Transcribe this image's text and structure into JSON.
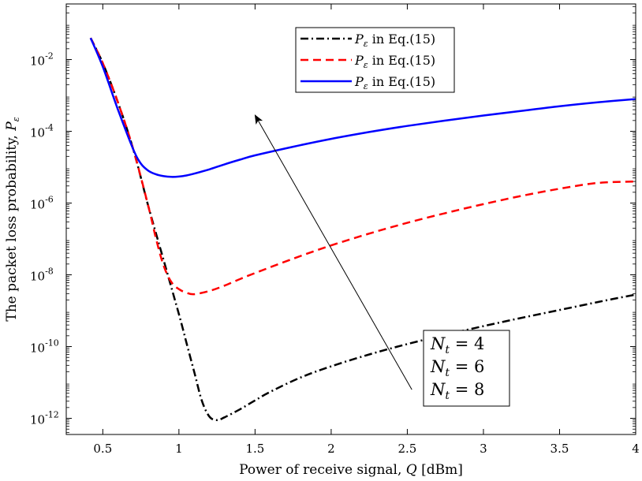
{
  "chart_data": {
    "type": "line",
    "xlabel": "Power of receive signal, Q [dBm]",
    "ylabel": "The packet loss probability, P_ε",
    "xlim": [
      0.26,
      4.0
    ],
    "ylim_log10": [
      -12.45,
      -0.45
    ],
    "y_scale": "log",
    "x_ticks": [
      0.5,
      1,
      1.5,
      2,
      2.5,
      3,
      3.5,
      4
    ],
    "x_tick_labels": [
      "0.5",
      "1",
      "1.5",
      "2",
      "2.5",
      "3",
      "3.5",
      "4"
    ],
    "y_ticks_log10": [
      -2,
      -4,
      -6,
      -8,
      -10,
      -12
    ],
    "y_tick_labels": [
      "10",
      "10",
      "10",
      "10",
      "10",
      "10"
    ],
    "y_tick_exponents": [
      "-2",
      "-4",
      "-6",
      "-8",
      "-10",
      "-12"
    ],
    "legend_position": "top-right",
    "series": [
      {
        "name": "P_ε in Eq.(15)",
        "legend_main": "P",
        "legend_sub": "ε",
        "legend_rest": " in Eq.(15)",
        "style": "dashdot",
        "color": "#000000",
        "x": [
          0.42,
          0.5,
          0.6,
          0.7,
          0.8,
          0.9,
          1.0,
          1.05,
          1.1,
          1.15,
          1.2,
          1.25,
          1.3,
          1.4,
          1.5,
          1.6,
          1.8,
          2.0,
          2.25,
          2.5,
          2.75,
          3.0,
          3.25,
          3.5,
          3.75,
          4.0
        ],
        "log10y": [
          -1.4,
          -2.1,
          -3.2,
          -4.5,
          -6.1,
          -7.6,
          -9.1,
          -9.9,
          -10.7,
          -11.5,
          -11.95,
          -12.05,
          -11.97,
          -11.75,
          -11.5,
          -11.26,
          -10.86,
          -10.55,
          -10.22,
          -9.93,
          -9.67,
          -9.43,
          -9.2,
          -8.98,
          -8.76,
          -8.55
        ]
      },
      {
        "name": "P_ε in Eq.(15)",
        "legend_main": "P",
        "legend_sub": "ε",
        "legend_rest": " in Eq.(15)",
        "style": "dashed",
        "color": "#ff0000",
        "x": [
          0.42,
          0.5,
          0.6,
          0.7,
          0.8,
          0.85,
          0.9,
          0.95,
          1.0,
          1.05,
          1.1,
          1.2,
          1.3,
          1.4,
          1.5,
          1.75,
          2.0,
          2.25,
          2.5,
          2.75,
          3.0,
          3.25,
          3.5,
          3.75,
          4.0
        ],
        "log10y": [
          -1.4,
          -2.1,
          -3.2,
          -4.5,
          -6.1,
          -7.0,
          -7.75,
          -8.2,
          -8.4,
          -8.5,
          -8.54,
          -8.45,
          -8.3,
          -8.12,
          -7.95,
          -7.55,
          -7.18,
          -6.85,
          -6.55,
          -6.28,
          -6.03,
          -5.8,
          -5.6,
          -5.44,
          -5.4
        ]
      },
      {
        "name": "P_ε in Eq.(15)",
        "legend_main": "P",
        "legend_sub": "ε",
        "legend_rest": " in Eq.(15)",
        "style": "solid",
        "color": "#0000ff",
        "x": [
          0.42,
          0.5,
          0.6,
          0.7,
          0.75,
          0.8,
          0.85,
          0.9,
          0.95,
          1.0,
          1.05,
          1.1,
          1.2,
          1.3,
          1.4,
          1.5,
          1.75,
          2.0,
          2.25,
          2.5,
          2.75,
          3.0,
          3.25,
          3.5,
          3.75,
          4.0
        ],
        "log10y": [
          -1.4,
          -2.2,
          -3.4,
          -4.5,
          -4.9,
          -5.1,
          -5.2,
          -5.25,
          -5.27,
          -5.26,
          -5.23,
          -5.18,
          -5.06,
          -4.92,
          -4.79,
          -4.67,
          -4.43,
          -4.21,
          -4.02,
          -3.85,
          -3.7,
          -3.56,
          -3.43,
          -3.3,
          -3.19,
          -3.1
        ]
      }
    ],
    "annotation": {
      "lines": [
        {
          "main": "N",
          "sub": "t",
          "rest": " = 4"
        },
        {
          "main": "N",
          "sub": "t",
          "rest": " = 6"
        },
        {
          "main": "N",
          "sub": "t",
          "rest": " = 8"
        }
      ],
      "arrow_from": {
        "x": 2.53,
        "log10y": -11.2
      },
      "arrow_to": {
        "x": 1.5,
        "log10y": -3.55
      }
    }
  }
}
